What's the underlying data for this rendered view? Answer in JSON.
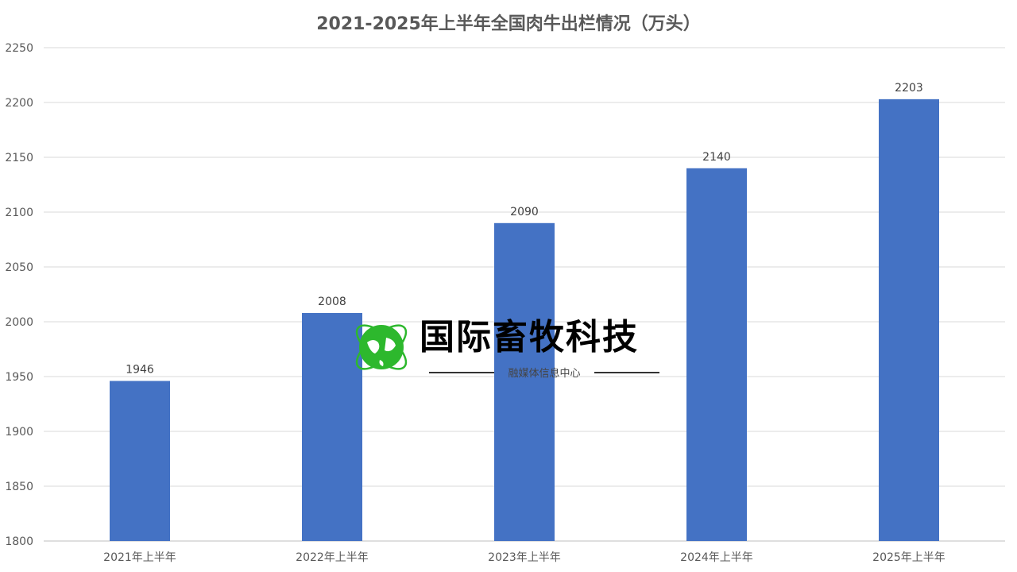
{
  "chart_data": {
    "type": "bar",
    "title": "2021-2025年上半年全国肉牛出栏情况（万头）",
    "categories": [
      "2021年上半年",
      "2022年上半年",
      "2023年上半年",
      "2024年上半年",
      "2025年上半年"
    ],
    "values": [
      1946,
      2008,
      2090,
      2140,
      2203
    ],
    "data_labels": [
      "1946",
      "2008",
      "2090",
      "2140",
      "2203"
    ],
    "xlabel": "",
    "ylabel": "",
    "ylim": [
      1800,
      2250
    ],
    "yticks": [
      1800,
      1850,
      1900,
      1950,
      2000,
      2050,
      2100,
      2150,
      2200,
      2250
    ],
    "grid": true,
    "legend": "none",
    "bar_color": "#4472C4"
  },
  "watermark": {
    "main": "国际畜牧科技",
    "sub": "融媒体信息中心",
    "globe_color": "#2DB82D"
  }
}
